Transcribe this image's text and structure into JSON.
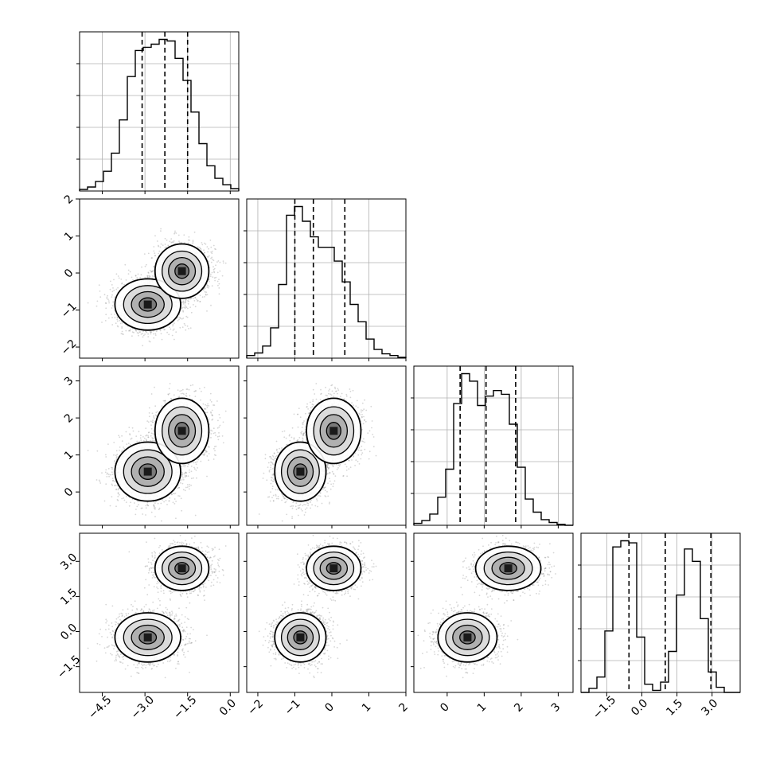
{
  "chart_data": {
    "type": "corner",
    "description_of_layout": "lower-triangular grid",
    "parameters": [
      {
        "index": 0,
        "range": [
          -5.3,
          0.3
        ],
        "ticks": [
          -4.5,
          -3.0,
          -1.5,
          0.0
        ],
        "tick_labels": [
          "−4.5",
          "−3.0",
          "−1.5",
          "0.0"
        ],
        "quantiles": [
          -3.1,
          -2.3,
          -1.5
        ],
        "histogram": {
          "edges_start": -5.3,
          "bin_width": 0.28,
          "counts": [
            2,
            5,
            12,
            25,
            48,
            90,
            145,
            178,
            182,
            186,
            192,
            190,
            168,
            140,
            100,
            60,
            32,
            16,
            8,
            3
          ]
        }
      },
      {
        "index": 1,
        "range": [
          -2.3,
          2.0
        ],
        "ticks": [
          -2,
          -1,
          0,
          1,
          2
        ],
        "tick_labels": [
          "−2",
          "−1",
          "0",
          "1",
          "2"
        ],
        "quantiles": [
          -1.0,
          -0.5,
          0.35
        ],
        "histogram": {
          "edges_start": -2.3,
          "bin_width": 0.215,
          "counts": [
            3,
            6,
            14,
            35,
            85,
            165,
            175,
            158,
            140,
            128,
            128,
            112,
            88,
            62,
            42,
            22,
            10,
            5,
            3,
            1
          ]
        }
      },
      {
        "index": 2,
        "range": [
          -0.9,
          3.4
        ],
        "ticks": [
          0,
          1,
          2,
          3
        ],
        "tick_labels": [
          "0",
          "1",
          "2",
          "3"
        ],
        "quantiles": [
          0.35,
          1.05,
          1.85
        ],
        "histogram": {
          "edges_start": -0.9,
          "bin_width": 0.215,
          "counts": [
            2,
            5,
            12,
            30,
            60,
            130,
            162,
            154,
            128,
            138,
            144,
            140,
            108,
            62,
            28,
            14,
            6,
            3,
            1,
            0
          ]
        }
      },
      {
        "index": 3,
        "range": [
          -2.6,
          4.2
        ],
        "ticks": [
          -1.5,
          0.0,
          1.5,
          3.0
        ],
        "tick_labels": [
          "−1.5",
          "0.0",
          "1.5",
          "3.0"
        ],
        "quantiles": [
          -0.55,
          1.0,
          2.95
        ],
        "histogram": {
          "edges_start": -2.6,
          "bin_width": 0.34,
          "counts": [
            0,
            4,
            15,
            60,
            142,
            148,
            146,
            54,
            8,
            2,
            10,
            40,
            95,
            140,
            128,
            72,
            20,
            5,
            0,
            0
          ]
        }
      }
    ],
    "modes": [
      {
        "weight": 0.55,
        "center": [
          -2.9,
          -0.85,
          0.55,
          -0.25
        ],
        "sd": [
          0.55,
          0.33,
          0.38,
          0.5
        ]
      },
      {
        "weight": 0.45,
        "center": [
          -1.7,
          0.05,
          1.65,
          2.7
        ],
        "sd": [
          0.45,
          0.35,
          0.42,
          0.45
        ]
      }
    ],
    "grid": true,
    "contour_levels": 4,
    "colors": {
      "scatter": "#8a8a8a",
      "fill_dark": "#1a1a1a",
      "line": "#000000",
      "grid": "#b0b0b0"
    }
  }
}
